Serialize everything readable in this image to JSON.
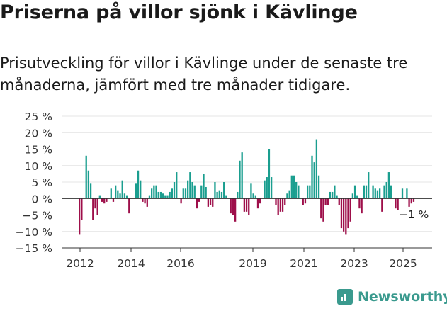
{
  "title": "Priserna på villor sjönk i Kävlinge",
  "subtitle": "Prisutveckling för villor i Kävlinge under de senaste tre månaderna, jämfört med tre månader tidigare.",
  "brand": {
    "name": "Newsworthy",
    "icon": "newsworthy-logo-icon",
    "color": "#3a9a8e"
  },
  "chart_data": {
    "type": "bar",
    "title": "",
    "xlabel": "",
    "ylabel": "",
    "ylim": [
      -15,
      25
    ],
    "y_ticks": [
      "25 %",
      "20 %",
      "15 %",
      "10 %",
      "5 %",
      "0 %",
      "−5 %",
      "−10 %",
      "−15 %"
    ],
    "y_tick_values": [
      25,
      20,
      15,
      10,
      5,
      0,
      -5,
      -10,
      -15
    ],
    "x_ticks": [
      "2012",
      "2014",
      "2016",
      "2019",
      "2021",
      "2023",
      "2025"
    ],
    "x_tick_values": [
      2012.0,
      2014.0,
      2016.0,
      2019.0,
      2021.0,
      2023.0,
      2025.0
    ],
    "x_range": [
      2011.6,
      2025.6
    ],
    "grid": true,
    "colors": {
      "positive": "#1a9e8f",
      "negative": "#9e0f4a"
    },
    "last_label": "−1 %",
    "values": [
      -11,
      -6.5,
      0,
      13,
      8.5,
      4.5,
      -6.5,
      -3,
      -5,
      1,
      -1,
      -1.5,
      -1,
      0,
      3,
      -1,
      4,
      2.5,
      1.5,
      5.5,
      1.5,
      1,
      -4.5,
      0,
      0,
      4.5,
      8.5,
      5.5,
      -1,
      -1.5,
      -2.5,
      1,
      3,
      4,
      4,
      2,
      2,
      1.5,
      1,
      1,
      2,
      3,
      5,
      8,
      0,
      -1.5,
      3,
      3,
      5.5,
      8,
      5,
      4,
      -3,
      -1,
      4,
      7.5,
      3.5,
      -2.5,
      -2,
      -2.5,
      5,
      2,
      2.5,
      2,
      5,
      1,
      0,
      -4.5,
      -5,
      -7,
      2,
      11.5,
      14,
      -4,
      -4,
      -5,
      4.5,
      1.5,
      1,
      -3,
      -1.5,
      0,
      5.5,
      6.5,
      15,
      6.5,
      0,
      -2,
      -5,
      -4,
      -4,
      -2,
      1.5,
      2.5,
      7,
      7,
      5,
      4,
      0,
      -2,
      -1.5,
      4,
      4,
      13,
      11,
      18,
      7,
      -6,
      -7,
      -2,
      -2,
      2,
      2,
      4,
      1,
      -2,
      -9,
      -10,
      -11,
      -9,
      -7,
      1.5,
      4,
      1,
      -3,
      -4.5,
      4,
      4,
      8,
      0,
      4,
      3,
      2.5,
      3,
      -4,
      4,
      5,
      8,
      4,
      0,
      -3,
      -3.5,
      0,
      3,
      0,
      3,
      -2.5,
      -1.5,
      -1
    ]
  }
}
